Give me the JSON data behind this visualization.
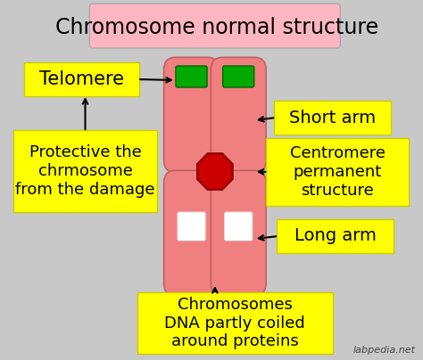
{
  "title": "Chromosome normal structure",
  "title_fontsize": 17,
  "title_bg": "#FFB6C1",
  "bg_color": "#C8C8C8",
  "chromosome_color": "#F08080",
  "telomere_color": "#00AA00",
  "centromere_color": "#CC0000",
  "band_color": "#FFFFFF",
  "label_bg": "#FFFF00",
  "label_fontsize": 14,
  "watermark": "labpedia.net",
  "labels": {
    "telomere": "Telomere",
    "short_arm": "Short arm",
    "centromere": "Centromere\npermanent\nstructure",
    "long_arm": "Long arm",
    "protective": "Protective the\nchrmosome\nfrom the damage",
    "dna": "Chromosomes\nDNA partly coiled\naround proteins"
  }
}
